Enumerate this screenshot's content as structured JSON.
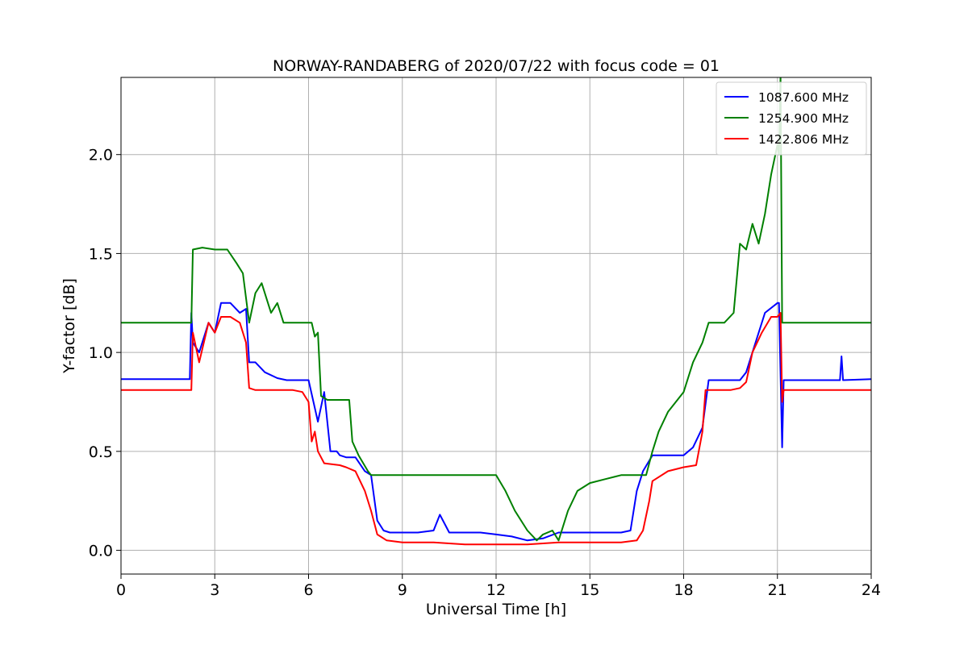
{
  "chart_data": {
    "type": "line",
    "title": "NORWAY-RANDABERG of 2020/07/22 with focus code = 01",
    "xlabel": "Universal Time [h]",
    "ylabel": "Y-factor [dB]",
    "xlim": [
      0,
      24
    ],
    "ylim": [
      -0.12,
      2.39
    ],
    "xticks": [
      0,
      3,
      6,
      9,
      12,
      15,
      18,
      21,
      24
    ],
    "xtick_labels": [
      "0",
      "3",
      "6",
      "9",
      "12",
      "15",
      "18",
      "21",
      "24"
    ],
    "yticks": [
      0.0,
      0.5,
      1.0,
      1.5,
      2.0
    ],
    "ytick_labels": [
      "0.0",
      "0.5",
      "1.0",
      "1.5",
      "2.0"
    ],
    "grid": true,
    "legend_position": "top-right",
    "series": [
      {
        "name": "1087.600 MHz",
        "color": "#0000ff",
        "x": [
          0,
          2.2,
          2.25,
          2.3,
          2.5,
          2.8,
          3.0,
          3.2,
          3.5,
          3.8,
          4.0,
          4.1,
          4.3,
          4.6,
          5.0,
          5.3,
          5.6,
          6.0,
          6.3,
          6.5,
          6.7,
          6.9,
          7.0,
          7.2,
          7.5,
          7.8,
          8.0,
          8.2,
          8.4,
          8.6,
          9.0,
          9.5,
          10.0,
          10.2,
          10.5,
          11.0,
          11.5,
          12.0,
          12.5,
          13.0,
          13.5,
          14.0,
          14.5,
          15.0,
          15.5,
          16.0,
          16.3,
          16.5,
          16.7,
          17.0,
          17.5,
          18.0,
          18.3,
          18.6,
          18.8,
          19.0,
          19.5,
          19.8,
          20.0,
          20.3,
          20.6,
          21.0,
          21.05,
          21.15,
          21.2,
          21.3,
          22.0,
          23.0,
          23.05,
          23.1,
          24.0
        ],
        "y": [
          0.865,
          0.865,
          1.2,
          1.05,
          1.0,
          1.15,
          1.1,
          1.25,
          1.25,
          1.2,
          1.22,
          0.95,
          0.95,
          0.9,
          0.87,
          0.86,
          0.86,
          0.86,
          0.65,
          0.8,
          0.5,
          0.5,
          0.48,
          0.47,
          0.47,
          0.4,
          0.38,
          0.15,
          0.1,
          0.09,
          0.09,
          0.09,
          0.1,
          0.18,
          0.09,
          0.09,
          0.09,
          0.08,
          0.07,
          0.05,
          0.06,
          0.09,
          0.09,
          0.09,
          0.09,
          0.09,
          0.1,
          0.3,
          0.4,
          0.48,
          0.48,
          0.48,
          0.52,
          0.62,
          0.86,
          0.86,
          0.86,
          0.86,
          0.9,
          1.05,
          1.2,
          1.25,
          1.25,
          0.52,
          0.86,
          0.86,
          0.86,
          0.86,
          0.98,
          0.86,
          0.865
        ]
      },
      {
        "name": "1254.900 MHz",
        "color": "#008000",
        "x": [
          0,
          2.2,
          2.25,
          2.3,
          2.6,
          3.0,
          3.4,
          3.7,
          3.9,
          4.1,
          4.3,
          4.5,
          4.8,
          5.0,
          5.2,
          5.5,
          6.0,
          6.1,
          6.2,
          6.3,
          6.4,
          6.6,
          7.0,
          7.3,
          7.4,
          7.6,
          7.9,
          8.0,
          8.5,
          9.0,
          10.0,
          11.0,
          11.5,
          12.0,
          12.3,
          12.6,
          13.0,
          13.3,
          13.5,
          13.8,
          14.0,
          14.3,
          14.6,
          15.0,
          15.5,
          16.0,
          16.5,
          16.8,
          17.0,
          17.2,
          17.5,
          17.8,
          18.0,
          18.3,
          18.6,
          18.8,
          19.0,
          19.3,
          19.6,
          19.8,
          20.0,
          20.2,
          20.4,
          20.6,
          20.8,
          21.0,
          21.05,
          21.1,
          21.15,
          21.2,
          21.5,
          22.0,
          23.0,
          24.0
        ],
        "y": [
          1.15,
          1.15,
          1.15,
          1.52,
          1.53,
          1.52,
          1.52,
          1.45,
          1.4,
          1.15,
          1.3,
          1.35,
          1.2,
          1.25,
          1.15,
          1.15,
          1.15,
          1.15,
          1.08,
          1.1,
          0.78,
          0.76,
          0.76,
          0.76,
          0.55,
          0.48,
          0.4,
          0.38,
          0.38,
          0.38,
          0.38,
          0.38,
          0.38,
          0.38,
          0.3,
          0.2,
          0.1,
          0.05,
          0.08,
          0.1,
          0.05,
          0.2,
          0.3,
          0.34,
          0.36,
          0.38,
          0.38,
          0.38,
          0.5,
          0.6,
          0.7,
          0.76,
          0.8,
          0.95,
          1.05,
          1.15,
          1.15,
          1.15,
          1.2,
          1.55,
          1.52,
          1.65,
          1.55,
          1.7,
          1.9,
          2.05,
          2.0,
          2.4,
          1.15,
          1.15,
          1.15,
          1.15,
          1.15,
          1.15
        ]
      },
      {
        "name": "1422.806 MHz",
        "color": "#ff0000",
        "x": [
          0,
          2.2,
          2.25,
          2.3,
          2.5,
          2.8,
          3.0,
          3.2,
          3.5,
          3.8,
          4.0,
          4.1,
          4.3,
          4.6,
          5.0,
          5.5,
          5.8,
          6.0,
          6.1,
          6.2,
          6.3,
          6.5,
          7.0,
          7.2,
          7.5,
          7.8,
          8.0,
          8.2,
          8.5,
          9.0,
          10.0,
          11.0,
          12.0,
          13.0,
          14.0,
          15.0,
          16.0,
          16.5,
          16.7,
          16.9,
          17.0,
          17.5,
          18.0,
          18.4,
          18.6,
          18.7,
          19.0,
          19.5,
          19.8,
          20.0,
          20.2,
          20.5,
          20.8,
          21.0,
          21.1,
          21.15,
          21.2,
          22.0,
          23.0,
          24.0
        ],
        "y": [
          0.81,
          0.81,
          0.81,
          1.1,
          0.95,
          1.15,
          1.1,
          1.18,
          1.18,
          1.15,
          1.05,
          0.82,
          0.81,
          0.81,
          0.81,
          0.81,
          0.8,
          0.75,
          0.55,
          0.6,
          0.5,
          0.44,
          0.43,
          0.42,
          0.4,
          0.3,
          0.2,
          0.08,
          0.05,
          0.04,
          0.04,
          0.03,
          0.03,
          0.03,
          0.04,
          0.04,
          0.04,
          0.05,
          0.1,
          0.25,
          0.35,
          0.4,
          0.42,
          0.43,
          0.6,
          0.81,
          0.81,
          0.81,
          0.82,
          0.85,
          1.0,
          1.1,
          1.18,
          1.18,
          1.2,
          0.75,
          0.81,
          0.81,
          0.81,
          0.81
        ]
      }
    ]
  }
}
